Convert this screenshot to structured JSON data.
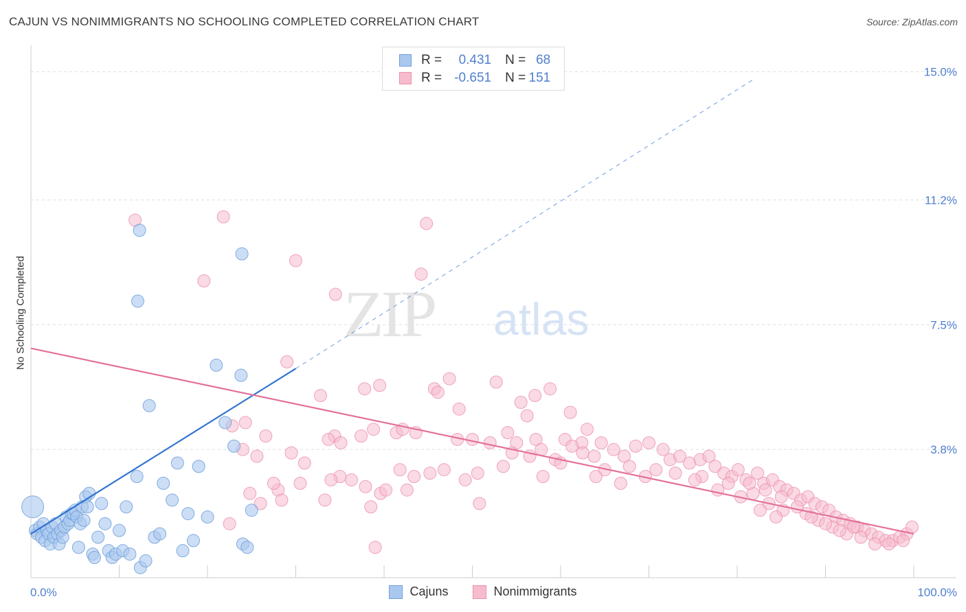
{
  "title": "CAJUN VS NONIMMIGRANTS NO SCHOOLING COMPLETED CORRELATION CHART",
  "source": "Source: ZipAtlas.com",
  "watermark": {
    "zip": "ZIP",
    "atlas": "atlas"
  },
  "stats": {
    "rows": [
      {
        "r_label": "R =",
        "r_value": "0.431",
        "n_label": "N =",
        "n_value": "68"
      },
      {
        "r_label": "R =",
        "r_value": "-0.651",
        "n_label": "N =",
        "n_value": "151"
      }
    ]
  },
  "legend": {
    "items": [
      "Cajuns",
      "Nonimmigrants"
    ]
  },
  "colors": {
    "cajuns_fill": "#aac8ee",
    "cajuns_stroke": "#6f9fdc",
    "cajuns_line": "#2f72d0",
    "nonimm_fill": "#f6bccd",
    "nonimm_stroke": "#ec8fab",
    "nonimm_line": "#e3709a",
    "axis_label": "#4f7fcf",
    "grid": "#dddddd"
  },
  "chart_data": {
    "type": "scatter",
    "title": "CAJUN VS NONIMMIGRANTS NO SCHOOLING COMPLETED CORRELATION CHART",
    "xlabel": "",
    "ylabel": "No Schooling Completed",
    "xlim": [
      0,
      100
    ],
    "ylim": [
      0,
      15.5
    ],
    "x_tick_labels": [
      "0.0%",
      "100.0%"
    ],
    "y_ticks": [
      3.8,
      7.5,
      11.2,
      15.0
    ],
    "y_tick_labels": [
      "3.8%",
      "7.5%",
      "11.2%",
      "15.0%"
    ],
    "grid": true,
    "legend_position": "bottom-center",
    "series": [
      {
        "name": "Cajuns",
        "r": 0.431,
        "n": 68,
        "trend": {
          "x": [
            0,
            30
          ],
          "y": [
            1.3,
            6.2
          ],
          "extended_to": [
            82,
            14.8
          ]
        },
        "points": [
          [
            0.2,
            2.1
          ],
          [
            0.5,
            1.4
          ],
          [
            0.7,
            1.3
          ],
          [
            1.0,
            1.5
          ],
          [
            1.2,
            1.2
          ],
          [
            1.4,
            1.6
          ],
          [
            1.6,
            1.1
          ],
          [
            1.8,
            1.4
          ],
          [
            2.0,
            1.3
          ],
          [
            2.2,
            1.0
          ],
          [
            2.4,
            1.5
          ],
          [
            2.6,
            1.2
          ],
          [
            2.8,
            1.6
          ],
          [
            3.0,
            1.3
          ],
          [
            3.2,
            1.0
          ],
          [
            3.4,
            1.4
          ],
          [
            3.6,
            1.2
          ],
          [
            3.8,
            1.5
          ],
          [
            4.0,
            1.8
          ],
          [
            4.2,
            1.6
          ],
          [
            4.4,
            1.7
          ],
          [
            4.6,
            1.9
          ],
          [
            4.8,
            1.9
          ],
          [
            5.0,
            2.0
          ],
          [
            5.2,
            1.8
          ],
          [
            5.4,
            0.9
          ],
          [
            5.6,
            1.6
          ],
          [
            5.8,
            2.1
          ],
          [
            6.0,
            1.7
          ],
          [
            6.2,
            2.4
          ],
          [
            6.4,
            2.1
          ],
          [
            6.6,
            2.5
          ],
          [
            7.0,
            0.7
          ],
          [
            7.2,
            0.6
          ],
          [
            7.6,
            1.2
          ],
          [
            8.0,
            2.2
          ],
          [
            8.4,
            1.6
          ],
          [
            8.8,
            0.8
          ],
          [
            9.2,
            0.6
          ],
          [
            9.6,
            0.7
          ],
          [
            10.0,
            1.4
          ],
          [
            10.4,
            0.8
          ],
          [
            10.8,
            2.1
          ],
          [
            11.2,
            0.7
          ],
          [
            12.0,
            3.0
          ],
          [
            12.4,
            0.3
          ],
          [
            13.0,
            0.5
          ],
          [
            13.4,
            5.1
          ],
          [
            14.0,
            1.2
          ],
          [
            14.6,
            1.3
          ],
          [
            15.0,
            2.8
          ],
          [
            16.0,
            2.3
          ],
          [
            16.6,
            3.4
          ],
          [
            17.2,
            0.8
          ],
          [
            17.8,
            1.9
          ],
          [
            18.4,
            1.1
          ],
          [
            19.0,
            3.3
          ],
          [
            20.0,
            1.8
          ],
          [
            21.0,
            6.3
          ],
          [
            22.0,
            4.6
          ],
          [
            23.0,
            3.9
          ],
          [
            24.0,
            1.0
          ],
          [
            25.0,
            2.0
          ],
          [
            23.8,
            6.0
          ],
          [
            24.5,
            0.9
          ],
          [
            12.3,
            10.3
          ],
          [
            12.1,
            8.2
          ],
          [
            23.9,
            9.6
          ]
        ]
      },
      {
        "name": "Nonimmigrants",
        "r": -0.651,
        "n": 151,
        "trend": {
          "x": [
            0,
            100
          ],
          "y": [
            6.8,
            1.3
          ]
        },
        "points": [
          [
            11.8,
            10.6
          ],
          [
            21.8,
            10.7
          ],
          [
            44.8,
            10.5
          ],
          [
            30.0,
            9.4
          ],
          [
            44.2,
            9.0
          ],
          [
            19.6,
            8.8
          ],
          [
            34.5,
            8.4
          ],
          [
            29.0,
            6.4
          ],
          [
            47.4,
            5.9
          ],
          [
            52.7,
            5.8
          ],
          [
            37.8,
            5.6
          ],
          [
            39.5,
            5.7
          ],
          [
            45.7,
            5.6
          ],
          [
            46.1,
            5.5
          ],
          [
            32.8,
            5.4
          ],
          [
            57.1,
            5.4
          ],
          [
            58.8,
            5.6
          ],
          [
            48.5,
            5.0
          ],
          [
            55.5,
            5.2
          ],
          [
            56.2,
            4.8
          ],
          [
            61.1,
            4.9
          ],
          [
            24.3,
            4.6
          ],
          [
            22.8,
            4.5
          ],
          [
            38.8,
            4.4
          ],
          [
            41.4,
            4.3
          ],
          [
            42.1,
            4.4
          ],
          [
            37.4,
            4.2
          ],
          [
            43.6,
            4.3
          ],
          [
            48.3,
            4.1
          ],
          [
            54.0,
            4.3
          ],
          [
            55.0,
            4.0
          ],
          [
            57.2,
            4.1
          ],
          [
            62.4,
            4.0
          ],
          [
            63.0,
            4.4
          ],
          [
            34.4,
            4.2
          ],
          [
            35.1,
            4.0
          ],
          [
            33.7,
            4.1
          ],
          [
            24.0,
            3.8
          ],
          [
            25.6,
            3.6
          ],
          [
            26.6,
            4.2
          ],
          [
            50.0,
            4.1
          ],
          [
            52.0,
            4.0
          ],
          [
            54.5,
            3.7
          ],
          [
            56.5,
            3.6
          ],
          [
            57.8,
            3.8
          ],
          [
            60.5,
            4.1
          ],
          [
            61.3,
            3.9
          ],
          [
            62.5,
            3.7
          ],
          [
            63.8,
            3.6
          ],
          [
            64.6,
            4.0
          ],
          [
            66.0,
            3.8
          ],
          [
            67.2,
            3.6
          ],
          [
            68.5,
            3.9
          ],
          [
            70.0,
            4.0
          ],
          [
            71.6,
            3.8
          ],
          [
            72.4,
            3.5
          ],
          [
            73.5,
            3.6
          ],
          [
            74.6,
            3.4
          ],
          [
            75.8,
            3.5
          ],
          [
            76.8,
            3.6
          ],
          [
            77.5,
            3.3
          ],
          [
            78.5,
            3.1
          ],
          [
            79.4,
            3.0
          ],
          [
            80.1,
            3.2
          ],
          [
            81.0,
            2.9
          ],
          [
            82.3,
            3.1
          ],
          [
            83.0,
            2.8
          ],
          [
            84.0,
            2.9
          ],
          [
            84.8,
            2.7
          ],
          [
            85.6,
            2.6
          ],
          [
            86.4,
            2.5
          ],
          [
            87.2,
            2.3
          ],
          [
            88.0,
            2.4
          ],
          [
            88.8,
            2.2
          ],
          [
            89.6,
            2.1
          ],
          [
            90.4,
            2.0
          ],
          [
            91.2,
            1.8
          ],
          [
            92.0,
            1.7
          ],
          [
            92.8,
            1.6
          ],
          [
            93.6,
            1.5
          ],
          [
            94.4,
            1.4
          ],
          [
            95.2,
            1.3
          ],
          [
            96.0,
            1.2
          ],
          [
            96.8,
            1.1
          ],
          [
            97.6,
            1.1
          ],
          [
            98.4,
            1.2
          ],
          [
            99.2,
            1.3
          ],
          [
            99.8,
            1.5
          ],
          [
            29.5,
            3.7
          ],
          [
            31.0,
            3.4
          ],
          [
            28.0,
            2.6
          ],
          [
            27.5,
            2.8
          ],
          [
            30.5,
            2.8
          ],
          [
            35.0,
            3.0
          ],
          [
            36.3,
            2.9
          ],
          [
            37.9,
            2.7
          ],
          [
            39.6,
            2.5
          ],
          [
            41.8,
            3.2
          ],
          [
            43.4,
            3.0
          ],
          [
            45.2,
            3.1
          ],
          [
            46.8,
            3.2
          ],
          [
            49.2,
            2.9
          ],
          [
            50.6,
            3.1
          ],
          [
            53.5,
            3.3
          ],
          [
            58.0,
            3.0
          ],
          [
            59.4,
            3.5
          ],
          [
            65.0,
            3.2
          ],
          [
            67.8,
            3.3
          ],
          [
            69.6,
            3.0
          ],
          [
            73.0,
            3.1
          ],
          [
            76.0,
            3.0
          ],
          [
            79.0,
            2.8
          ],
          [
            81.8,
            2.5
          ],
          [
            83.6,
            2.2
          ],
          [
            85.2,
            2.0
          ],
          [
            87.8,
            1.9
          ],
          [
            89.2,
            1.7
          ],
          [
            90.8,
            1.5
          ],
          [
            92.4,
            1.3
          ],
          [
            94.0,
            1.2
          ],
          [
            95.6,
            1.0
          ],
          [
            97.2,
            1.0
          ],
          [
            98.8,
            1.1
          ],
          [
            93.2,
            1.5
          ],
          [
            91.6,
            1.4
          ],
          [
            90.0,
            1.6
          ],
          [
            88.4,
            1.8
          ],
          [
            86.8,
            2.1
          ],
          [
            85.0,
            2.4
          ],
          [
            83.2,
            2.6
          ],
          [
            81.4,
            2.8
          ],
          [
            24.8,
            2.5
          ],
          [
            26.0,
            2.2
          ],
          [
            22.5,
            1.6
          ],
          [
            28.4,
            2.3
          ],
          [
            33.3,
            2.3
          ],
          [
            38.5,
            2.1
          ],
          [
            40.2,
            2.6
          ],
          [
            42.6,
            2.6
          ],
          [
            50.8,
            2.2
          ],
          [
            39.0,
            0.9
          ],
          [
            34.0,
            2.9
          ],
          [
            60.0,
            3.4
          ],
          [
            64.0,
            3.0
          ],
          [
            66.8,
            2.8
          ],
          [
            70.8,
            3.2
          ],
          [
            75.2,
            2.9
          ],
          [
            77.8,
            2.6
          ],
          [
            80.4,
            2.4
          ],
          [
            82.6,
            2.0
          ],
          [
            84.4,
            1.8
          ]
        ]
      }
    ]
  }
}
